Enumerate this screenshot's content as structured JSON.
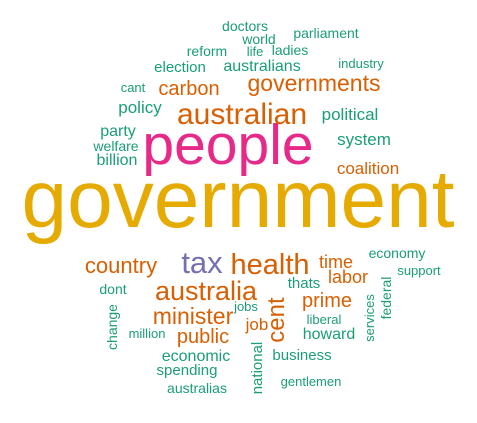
{
  "colors": {
    "green": "#1b9e77",
    "orange": "#d95f02",
    "purple": "#7570b3",
    "magenta": "#e7298a",
    "gold": "#e6ab02",
    "background": "#ffffff"
  },
  "words": [
    {
      "text": "government",
      "color": "gold"
    },
    {
      "text": "people",
      "color": "magenta"
    },
    {
      "text": "australian",
      "color": "orange"
    },
    {
      "text": "health",
      "color": "orange"
    },
    {
      "text": "tax",
      "color": "purple"
    },
    {
      "text": "australia",
      "color": "orange"
    },
    {
      "text": "governments",
      "color": "orange"
    },
    {
      "text": "country",
      "color": "orange"
    },
    {
      "text": "minister",
      "color": "orange"
    },
    {
      "text": "public",
      "color": "orange"
    },
    {
      "text": "carbon",
      "color": "orange"
    },
    {
      "text": "cent",
      "color": "orange"
    },
    {
      "text": "prime",
      "color": "orange"
    },
    {
      "text": "coalition",
      "color": "orange"
    },
    {
      "text": "labor",
      "color": "orange"
    },
    {
      "text": "time",
      "color": "orange"
    },
    {
      "text": "job",
      "color": "orange"
    },
    {
      "text": "policy",
      "color": "green"
    },
    {
      "text": "political",
      "color": "green"
    },
    {
      "text": "system",
      "color": "green"
    },
    {
      "text": "party",
      "color": "green"
    },
    {
      "text": "billion",
      "color": "green"
    },
    {
      "text": "welfare",
      "color": "green"
    },
    {
      "text": "election",
      "color": "green"
    },
    {
      "text": "australians",
      "color": "green"
    },
    {
      "text": "reform",
      "color": "green"
    },
    {
      "text": "life",
      "color": "green"
    },
    {
      "text": "ladies",
      "color": "green"
    },
    {
      "text": "world",
      "color": "green"
    },
    {
      "text": "doctors",
      "color": "green"
    },
    {
      "text": "parliament",
      "color": "green"
    },
    {
      "text": "industry",
      "color": "green"
    },
    {
      "text": "cant",
      "color": "green"
    },
    {
      "text": "economy",
      "color": "green"
    },
    {
      "text": "support",
      "color": "green"
    },
    {
      "text": "dont",
      "color": "green"
    },
    {
      "text": "thats",
      "color": "green"
    },
    {
      "text": "jobs",
      "color": "green"
    },
    {
      "text": "liberal",
      "color": "green"
    },
    {
      "text": "howard",
      "color": "green"
    },
    {
      "text": "change",
      "color": "green"
    },
    {
      "text": "million",
      "color": "green"
    },
    {
      "text": "economic",
      "color": "green"
    },
    {
      "text": "spending",
      "color": "green"
    },
    {
      "text": "australias",
      "color": "green"
    },
    {
      "text": "business",
      "color": "green"
    },
    {
      "text": "national",
      "color": "green"
    },
    {
      "text": "gentlemen",
      "color": "green"
    },
    {
      "text": "services",
      "color": "green"
    },
    {
      "text": "federal",
      "color": "green"
    }
  ]
}
